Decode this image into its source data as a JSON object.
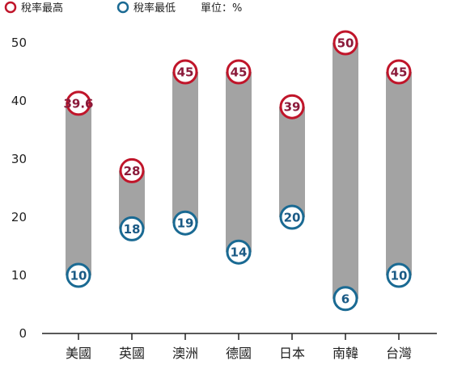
{
  "legend": {
    "high_label": "稅率最高",
    "low_label": "稅率最低",
    "unit": "單位：%"
  },
  "colors": {
    "high_ring": "#c0152a",
    "high_text": "#8b1a3a",
    "low_ring": "#1a6a93",
    "low_text": "#1a5a85",
    "bar": "#a3a3a3",
    "highlight_category": "#c0152a"
  },
  "chart_data": {
    "type": "range-bar",
    "categories": [
      "美國",
      "英國",
      "澳洲",
      "德國",
      "日本",
      "南韓",
      "台灣"
    ],
    "series": [
      {
        "name": "稅率最高",
        "values": [
          39.6,
          28,
          45,
          45,
          39,
          50,
          45
        ],
        "labels": [
          "39.6",
          "28",
          "45",
          "45",
          "39",
          "50",
          "45"
        ]
      },
      {
        "name": "稅率最低",
        "values": [
          10,
          18,
          19,
          14,
          20,
          6,
          10
        ],
        "labels": [
          "10",
          "18",
          "19",
          "14",
          "20",
          "6",
          "10"
        ]
      }
    ],
    "yticks": [
      0,
      10,
      20,
      30,
      40,
      50
    ],
    "ylim": [
      0,
      50
    ],
    "highlight_index": 6,
    "grid": false,
    "legend_position": "top-left"
  }
}
